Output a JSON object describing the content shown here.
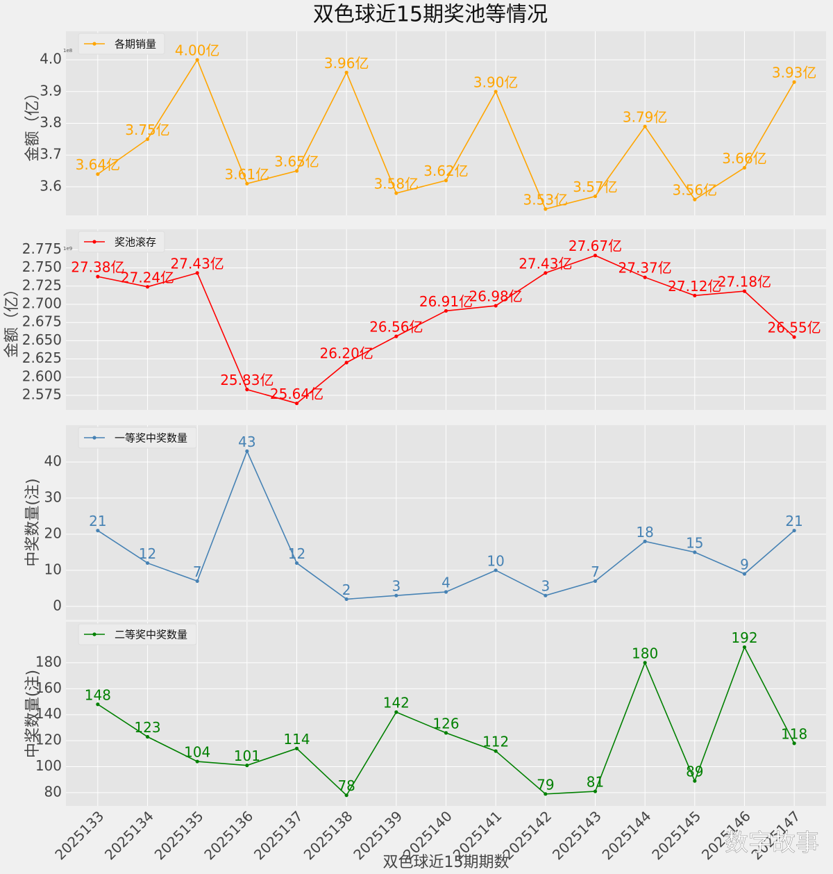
{
  "title": "双色球近15期奖池等情况",
  "watermark": "数字故事",
  "chart_data": [
    {
      "type": "line",
      "ylabel": "金额（亿）",
      "y_offset_label": "1e8",
      "legend": "upper left",
      "grid": true,
      "series": [
        {
          "name": "各期销量",
          "color": "#ffa500",
          "values": [
            3.64,
            3.75,
            4.0,
            3.61,
            3.65,
            3.96,
            3.58,
            3.62,
            3.9,
            3.53,
            3.57,
            3.79,
            3.56,
            3.66,
            3.93
          ],
          "value_labels": [
            "3.64亿",
            "3.75亿",
            "4.00亿",
            "3.61亿",
            "3.65亿",
            "3.96亿",
            "3.58亿",
            "3.62亿",
            "3.90亿",
            "3.53亿",
            "3.57亿",
            "3.79亿",
            "3.56亿",
            "3.66亿",
            "3.93亿"
          ]
        }
      ],
      "ylim": [
        3.51,
        4.09
      ],
      "yticks": [
        3.6,
        3.7,
        3.8,
        3.9,
        {
          "value": 4,
          "label": "4.0"
        }
      ]
    },
    {
      "type": "line",
      "ylabel": "金额（亿）",
      "y_offset_label": "1e9",
      "legend": "upper left",
      "grid": true,
      "series": [
        {
          "name": "奖池滚存",
          "color": "#ff0000",
          "values": [
            2.738,
            2.724,
            2.743,
            2.583,
            2.564,
            2.62,
            2.656,
            2.691,
            2.698,
            2.743,
            2.767,
            2.737,
            2.712,
            2.718,
            2.655
          ],
          "value_labels": [
            "27.38亿",
            "27.24亿",
            "27.43亿",
            "25.83亿",
            "25.64亿",
            "26.20亿",
            "26.56亿",
            "26.91亿",
            "26.98亿",
            "27.43亿",
            "27.67亿",
            "27.37亿",
            "27.12亿",
            "27.18亿",
            "26.55亿"
          ]
        }
      ],
      "ylim": [
        2.555,
        2.803
      ],
      "yticks": [
        2.575,
        {
          "value": 2.6,
          "label": "2.600"
        },
        2.625,
        {
          "value": 2.65,
          "label": "2.650"
        },
        2.675,
        {
          "value": 2.7,
          "label": "2.700"
        },
        2.725,
        {
          "value": 2.75,
          "label": "2.750"
        },
        2.775
      ]
    },
    {
      "type": "line",
      "ylabel": "中奖数量(注)",
      "legend": "upper left",
      "grid": true,
      "series": [
        {
          "name": "一等奖中奖数量",
          "color": "#4682b4",
          "values": [
            21,
            12,
            7,
            43,
            12,
            2,
            3,
            4,
            10,
            3,
            7,
            18,
            15,
            9,
            21
          ]
        }
      ],
      "ylim": [
        -3.7,
        50.2
      ],
      "yticks": [
        0,
        10,
        20,
        30,
        40
      ]
    },
    {
      "type": "line",
      "ylabel": "中奖数量(注)",
      "xlabel": "双色球近15期期数",
      "legend": "upper left",
      "grid": true,
      "categories": [
        "2025133",
        "2025134",
        "2025135",
        "2025136",
        "2025137",
        "2025138",
        "2025139",
        "2025140",
        "2025141",
        "2025142",
        "2025143",
        "2025144",
        "2025145",
        "2025146",
        "2025147"
      ],
      "series": [
        {
          "name": "二等奖中奖数量",
          "color": "#008000",
          "values": [
            148,
            123,
            104,
            101,
            114,
            78,
            142,
            126,
            112,
            79,
            81,
            180,
            89,
            192,
            118
          ]
        }
      ],
      "ylim": [
        69.8,
        211.5
      ],
      "yticks": [
        80,
        100,
        120,
        140,
        160,
        180
      ]
    }
  ]
}
